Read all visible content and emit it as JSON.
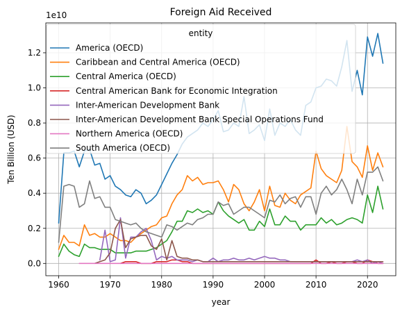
{
  "chart_data": {
    "type": "line",
    "title": "Foreign Aid Received",
    "xlabel": "year",
    "ylabel": "Ten Billion (USD)",
    "y_offset_label": "1e10",
    "xlim": [
      1957.5,
      2025.5
    ],
    "ylim": [
      -0.07,
      1.37
    ],
    "x_ticks": [
      1960,
      1970,
      1980,
      1990,
      2000,
      2010,
      2020
    ],
    "y_ticks": [
      0.0,
      0.2,
      0.4,
      0.6,
      0.8,
      1.0,
      1.2
    ],
    "y_tick_labels": [
      "0.0",
      "0.2",
      "0.4",
      "0.6",
      "0.8",
      "1.0",
      "1.2"
    ],
    "grid": true,
    "legend": {
      "title": "entity",
      "placement": "upper-left"
    },
    "series": [
      {
        "name": "America (OECD)",
        "color": "#1f77b4",
        "x": [
          1960,
          1961,
          1962,
          1963,
          1964,
          1965,
          1966,
          1967,
          1968,
          1969,
          1970,
          1971,
          1972,
          1973,
          1974,
          1975,
          1976,
          1977,
          1978,
          1979,
          1980,
          1981,
          1982,
          1983,
          1984,
          1985,
          1986,
          1987,
          1988,
          1989,
          1990,
          1991,
          1992,
          1993,
          1994,
          1995,
          1996,
          1997,
          1998,
          1999,
          2000,
          2001,
          2002,
          2003,
          2004,
          2005,
          2006,
          2007,
          2008,
          2009,
          2010,
          2011,
          2012,
          2013,
          2014,
          2015,
          2016,
          2017,
          2018,
          2019,
          2020,
          2021,
          2022,
          2023
        ],
        "y": [
          0.23,
          0.63,
          0.63,
          0.64,
          0.55,
          0.64,
          0.65,
          0.56,
          0.57,
          0.48,
          0.5,
          0.44,
          0.42,
          0.39,
          0.38,
          0.42,
          0.4,
          0.34,
          0.36,
          0.39,
          0.45,
          0.51,
          0.57,
          0.62,
          0.68,
          0.72,
          0.74,
          0.76,
          0.8,
          0.78,
          0.82,
          0.87,
          0.75,
          0.76,
          0.8,
          0.78,
          0.95,
          0.74,
          0.76,
          0.79,
          0.7,
          0.88,
          0.73,
          0.8,
          0.78,
          0.82,
          0.76,
          0.73,
          0.9,
          0.92,
          1.0,
          1.01,
          1.05,
          1.04,
          1.01,
          1.12,
          1.27,
          0.98,
          1.1,
          0.96,
          1.29,
          1.18,
          1.31,
          1.14
        ]
      },
      {
        "name": "Caribbean and Central America (OECD)",
        "color": "#ff7f0e",
        "x": [
          1960,
          1961,
          1962,
          1963,
          1964,
          1965,
          1966,
          1967,
          1968,
          1969,
          1970,
          1971,
          1972,
          1973,
          1974,
          1975,
          1976,
          1977,
          1978,
          1979,
          1980,
          1981,
          1982,
          1983,
          1984,
          1985,
          1986,
          1987,
          1988,
          1989,
          1990,
          1991,
          1992,
          1993,
          1994,
          1995,
          1996,
          1997,
          1998,
          1999,
          2000,
          2001,
          2002,
          2003,
          2004,
          2005,
          2006,
          2007,
          2008,
          2009,
          2010,
          2011,
          2012,
          2013,
          2014,
          2015,
          2016,
          2017,
          2018,
          2019,
          2020,
          2021,
          2022,
          2023
        ],
        "y": [
          0.08,
          0.16,
          0.12,
          0.12,
          0.1,
          0.22,
          0.16,
          0.17,
          0.15,
          0.15,
          0.17,
          0.15,
          0.13,
          0.13,
          0.12,
          0.15,
          0.17,
          0.19,
          0.21,
          0.22,
          0.26,
          0.27,
          0.34,
          0.39,
          0.42,
          0.5,
          0.47,
          0.49,
          0.45,
          0.46,
          0.46,
          0.47,
          0.42,
          0.35,
          0.45,
          0.42,
          0.34,
          0.3,
          0.35,
          0.42,
          0.3,
          0.44,
          0.33,
          0.32,
          0.4,
          0.36,
          0.34,
          0.39,
          0.41,
          0.43,
          0.64,
          0.54,
          0.5,
          0.48,
          0.46,
          0.53,
          0.78,
          0.58,
          0.55,
          0.49,
          0.67,
          0.53,
          0.63,
          0.55
        ]
      },
      {
        "name": "Central America (OECD)",
        "color": "#2ca02c",
        "x": [
          1960,
          1961,
          1962,
          1963,
          1964,
          1965,
          1966,
          1967,
          1968,
          1969,
          1970,
          1971,
          1972,
          1973,
          1974,
          1975,
          1976,
          1977,
          1978,
          1979,
          1980,
          1981,
          1982,
          1983,
          1984,
          1985,
          1986,
          1987,
          1988,
          1989,
          1990,
          1991,
          1992,
          1993,
          1994,
          1995,
          1996,
          1997,
          1998,
          1999,
          2000,
          2001,
          2002,
          2003,
          2004,
          2005,
          2006,
          2007,
          2008,
          2009,
          2010,
          2011,
          2012,
          2013,
          2014,
          2015,
          2016,
          2017,
          2018,
          2019,
          2020,
          2021,
          2022,
          2023
        ],
        "y": [
          0.04,
          0.11,
          0.07,
          0.05,
          0.04,
          0.11,
          0.09,
          0.09,
          0.08,
          0.08,
          0.08,
          0.06,
          0.06,
          0.06,
          0.06,
          0.07,
          0.07,
          0.07,
          0.08,
          0.09,
          0.11,
          0.13,
          0.18,
          0.24,
          0.24,
          0.3,
          0.29,
          0.31,
          0.29,
          0.3,
          0.28,
          0.35,
          0.3,
          0.27,
          0.25,
          0.23,
          0.25,
          0.19,
          0.19,
          0.24,
          0.21,
          0.31,
          0.22,
          0.22,
          0.27,
          0.24,
          0.24,
          0.19,
          0.22,
          0.22,
          0.22,
          0.26,
          0.23,
          0.25,
          0.22,
          0.23,
          0.25,
          0.26,
          0.25,
          0.23,
          0.39,
          0.29,
          0.44,
          0.31
        ]
      },
      {
        "name": "Central American Bank for Economic Integration",
        "color": "#d62728",
        "x": [
          1972,
          1973,
          1974,
          1975,
          1976,
          1977,
          1978,
          1979,
          1980,
          1981,
          1982,
          1983,
          1984,
          1985,
          1986,
          1987,
          1988,
          1989,
          1990,
          1991,
          1992,
          1993,
          1994,
          1995,
          1996,
          1997,
          1998,
          1999,
          2000,
          2001,
          2002,
          2003,
          2004,
          2005,
          2006,
          2007,
          2008,
          2009,
          2010,
          2011,
          2012,
          2013,
          2014,
          2015,
          2016,
          2017,
          2018,
          2019,
          2020,
          2021,
          2022,
          2023
        ],
        "y": [
          0.0,
          0.01,
          0.01,
          0.01,
          0.0,
          0.0,
          0.0,
          0.01,
          0.01,
          0.01,
          0.02,
          0.02,
          0.01,
          0.01,
          0.0,
          0.0,
          0.0,
          0.0,
          0.0,
          0.0,
          0.0,
          0.0,
          0.0,
          0.0,
          0.0,
          0.0,
          0.0,
          0.0,
          0.0,
          0.0,
          0.0,
          0.0,
          0.0,
          0.0,
          0.0,
          0.0,
          0.0,
          0.0,
          0.02,
          0.0,
          0.0,
          0.01,
          0.0,
          0.0,
          0.01,
          0.01,
          0.0,
          0.0,
          0.02,
          0.01,
          0.0,
          0.0
        ]
      },
      {
        "name": "Inter-American Development Bank",
        "color": "#9467bd",
        "x": [
          1968,
          1969,
          1970,
          1971,
          1972,
          1973,
          1974,
          1975,
          1976,
          1977,
          1978,
          1979,
          1980,
          1981,
          1982,
          1983,
          1984,
          1985,
          1986,
          1987,
          1988,
          1989,
          1990,
          1991,
          1992,
          1993,
          1994,
          1995,
          1996,
          1997,
          1998,
          1999,
          2000,
          2001,
          2002,
          2003,
          2004,
          2005,
          2006,
          2007,
          2008,
          2009,
          2010,
          2011,
          2012,
          2013,
          2014,
          2015,
          2016,
          2017,
          2018,
          2019,
          2020,
          2021,
          2022,
          2023
        ],
        "y": [
          0.02,
          0.19,
          0.01,
          0.02,
          0.26,
          0.03,
          0.15,
          0.15,
          0.18,
          0.2,
          0.13,
          0.02,
          0.04,
          0.03,
          0.04,
          0.02,
          0.02,
          0.02,
          0.01,
          0.02,
          0.01,
          0.01,
          0.03,
          0.01,
          0.02,
          0.02,
          0.03,
          0.02,
          0.02,
          0.03,
          0.02,
          0.03,
          0.04,
          0.03,
          0.03,
          0.02,
          0.02,
          0.01,
          0.01,
          0.01,
          0.01,
          0.01,
          0.01,
          0.01,
          0.01,
          0.01,
          0.01,
          0.01,
          0.01,
          0.01,
          0.02,
          0.01,
          0.02,
          0.0,
          0.01,
          0.0
        ]
      },
      {
        "name": "Inter-American Development Bank Special Operations Fund",
        "color": "#8c564b",
        "x": [
          1967,
          1968,
          1969,
          1970,
          1971,
          1972,
          1973,
          1974,
          1975,
          1976,
          1977,
          1978,
          1979,
          1980,
          1981,
          1982,
          1983,
          1984,
          1985,
          1986,
          1987,
          1988,
          1989,
          1990,
          1991,
          1992,
          1993,
          1994,
          1995,
          1996,
          1997,
          1998,
          1999,
          2000,
          2001,
          2002,
          2003,
          2004,
          2005,
          2006,
          2007,
          2008,
          2009,
          2010,
          2011,
          2012,
          2013,
          2014,
          2015,
          2016,
          2017,
          2018,
          2019,
          2020,
          2021,
          2022,
          2023
        ],
        "y": [
          0.0,
          0.01,
          0.02,
          0.06,
          0.2,
          0.25,
          0.09,
          0.14,
          0.15,
          0.16,
          0.16,
          0.1,
          0.08,
          0.14,
          0.02,
          0.13,
          0.04,
          0.03,
          0.03,
          0.02,
          0.02,
          0.01,
          0.01,
          0.01,
          0.01,
          0.01,
          0.01,
          0.01,
          0.01,
          0.01,
          0.01,
          0.01,
          0.01,
          0.01,
          0.01,
          0.01,
          0.01,
          0.01,
          0.01,
          0.01,
          0.01,
          0.01,
          0.01,
          0.01,
          0.01,
          0.01,
          0.01,
          0.01,
          0.01,
          0.01,
          0.01,
          0.01,
          0.01,
          0.01,
          0.01,
          0.01,
          0.01
        ]
      },
      {
        "name": "Northern America (OECD)",
        "color": "#e377c2",
        "x": [
          1964,
          1965,
          1966,
          1967,
          1968,
          1969,
          1970,
          1971,
          1972,
          1973,
          1974,
          1975,
          1976,
          1977,
          1978,
          1979,
          1980,
          1981,
          1982,
          1983,
          1984,
          1985,
          1986,
          1987,
          1988,
          1989,
          1990,
          1991,
          1992,
          1993,
          1994,
          1995,
          1996,
          1997,
          1998,
          1999,
          2000,
          2001,
          2002,
          2003,
          2004,
          2005,
          2006,
          2007,
          2008,
          2009,
          2010,
          2011,
          2012,
          2013,
          2014,
          2015,
          2016,
          2017,
          2018,
          2019,
          2020,
          2021,
          2022,
          2023
        ],
        "y": [
          0.0,
          0.0,
          0.0,
          0.0,
          0.0,
          0.0,
          0.0,
          0.0,
          0.0,
          0.0,
          0.0,
          0.0,
          0.0,
          0.0,
          0.0,
          0.0,
          0.0,
          0.0,
          0.0,
          0.0,
          0.0,
          0.0,
          0.0,
          0.0,
          0.0,
          0.0,
          0.0,
          0.0,
          0.0,
          0.0,
          0.0,
          0.0,
          0.0,
          0.0,
          0.0,
          0.0,
          0.0,
          0.0,
          0.0,
          0.0,
          0.0,
          0.0,
          0.0,
          0.0,
          0.0,
          0.0,
          0.0,
          0.0,
          0.0,
          0.0,
          0.0,
          0.0,
          0.0,
          0.0,
          0.0,
          0.0,
          0.0,
          0.0,
          0.0,
          0.0
        ]
      },
      {
        "name": "South America (OECD)",
        "color": "#7f7f7f",
        "x": [
          1960,
          1961,
          1962,
          1963,
          1964,
          1965,
          1966,
          1967,
          1968,
          1969,
          1970,
          1971,
          1972,
          1973,
          1974,
          1975,
          1976,
          1977,
          1978,
          1979,
          1980,
          1981,
          1982,
          1983,
          1984,
          1985,
          1986,
          1987,
          1988,
          1989,
          1990,
          1991,
          1992,
          1993,
          1994,
          1995,
          1996,
          1997,
          1998,
          1999,
          2000,
          2001,
          2002,
          2003,
          2004,
          2005,
          2006,
          2007,
          2008,
          2009,
          2010,
          2011,
          2012,
          2013,
          2014,
          2015,
          2016,
          2017,
          2018,
          2019,
          2020,
          2021,
          2022,
          2023
        ],
        "y": [
          0.12,
          0.44,
          0.45,
          0.44,
          0.32,
          0.34,
          0.47,
          0.37,
          0.38,
          0.32,
          0.32,
          0.25,
          0.24,
          0.23,
          0.22,
          0.23,
          0.2,
          0.18,
          0.17,
          0.16,
          0.15,
          0.22,
          0.21,
          0.19,
          0.21,
          0.23,
          0.22,
          0.25,
          0.26,
          0.28,
          0.28,
          0.35,
          0.33,
          0.34,
          0.28,
          0.3,
          0.32,
          0.32,
          0.3,
          0.28,
          0.26,
          0.36,
          0.35,
          0.39,
          0.34,
          0.37,
          0.38,
          0.32,
          0.38,
          0.38,
          0.28,
          0.4,
          0.44,
          0.39,
          0.42,
          0.48,
          0.42,
          0.34,
          0.48,
          0.39,
          0.52,
          0.52,
          0.55,
          0.47
        ]
      }
    ]
  }
}
